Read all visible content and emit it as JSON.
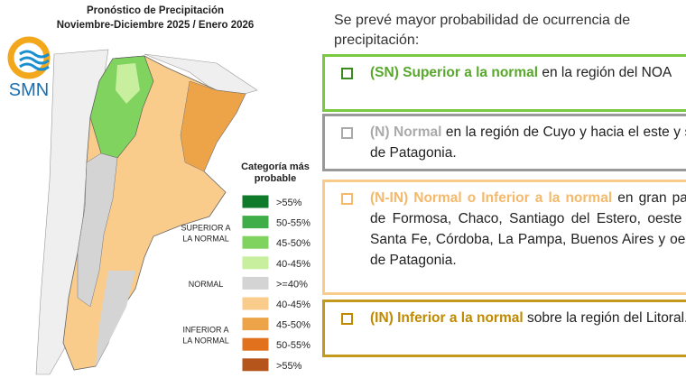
{
  "map": {
    "title": "Pronóstico de Precipitación",
    "subtitle": "Noviembre-Diciembre 2025 / Enero 2026",
    "logo": "SMN",
    "legend_title": [
      "Categoría más",
      "probable"
    ],
    "legend": [
      {
        "label": ">55%",
        "color": "#0f7a2a"
      },
      {
        "label": "50-55%",
        "color": "#3fae49"
      },
      {
        "label": "45-50%",
        "color": "#7fd35e"
      },
      {
        "label": "40-45%",
        "color": "#c7ef9e"
      },
      {
        "label": ">=40%",
        "color": "#d4d4d4"
      },
      {
        "label": "40-45%",
        "color": "#f9cc8c"
      },
      {
        "label": "45-50%",
        "color": "#eda448"
      },
      {
        "label": "50-55%",
        "color": "#e2711d"
      },
      {
        "label": ">55%",
        "color": "#b5541b"
      }
    ],
    "groups": [
      [
        "SUPERIOR A",
        "LA NORMAL"
      ],
      [
        "NORMAL"
      ],
      [
        "INFERIOR A",
        "LA NORMAL"
      ]
    ]
  },
  "panel": {
    "intro": "Se prevé mayor probabilidad de ocurrencia de precipitación:",
    "boxes": [
      {
        "highlight": "(SN) Superior a la normal",
        "text": "en la región del NOA"
      },
      {
        "highlight": "(N) Normal",
        "text": "en la región de Cuyo y hacia el este y sur de Patagonia."
      },
      {
        "highlight": "(N-IN) Normal o Inferior a la normal",
        "text": "en gran parte de Formosa, Chaco, Santiago del Estero, oeste de Santa Fe, Córdoba, La Pampa, Buenos Aires y oeste de Patagonia."
      },
      {
        "highlight": "(IN) Inferior a la normal",
        "text": "sobre la región del Litoral."
      }
    ]
  }
}
